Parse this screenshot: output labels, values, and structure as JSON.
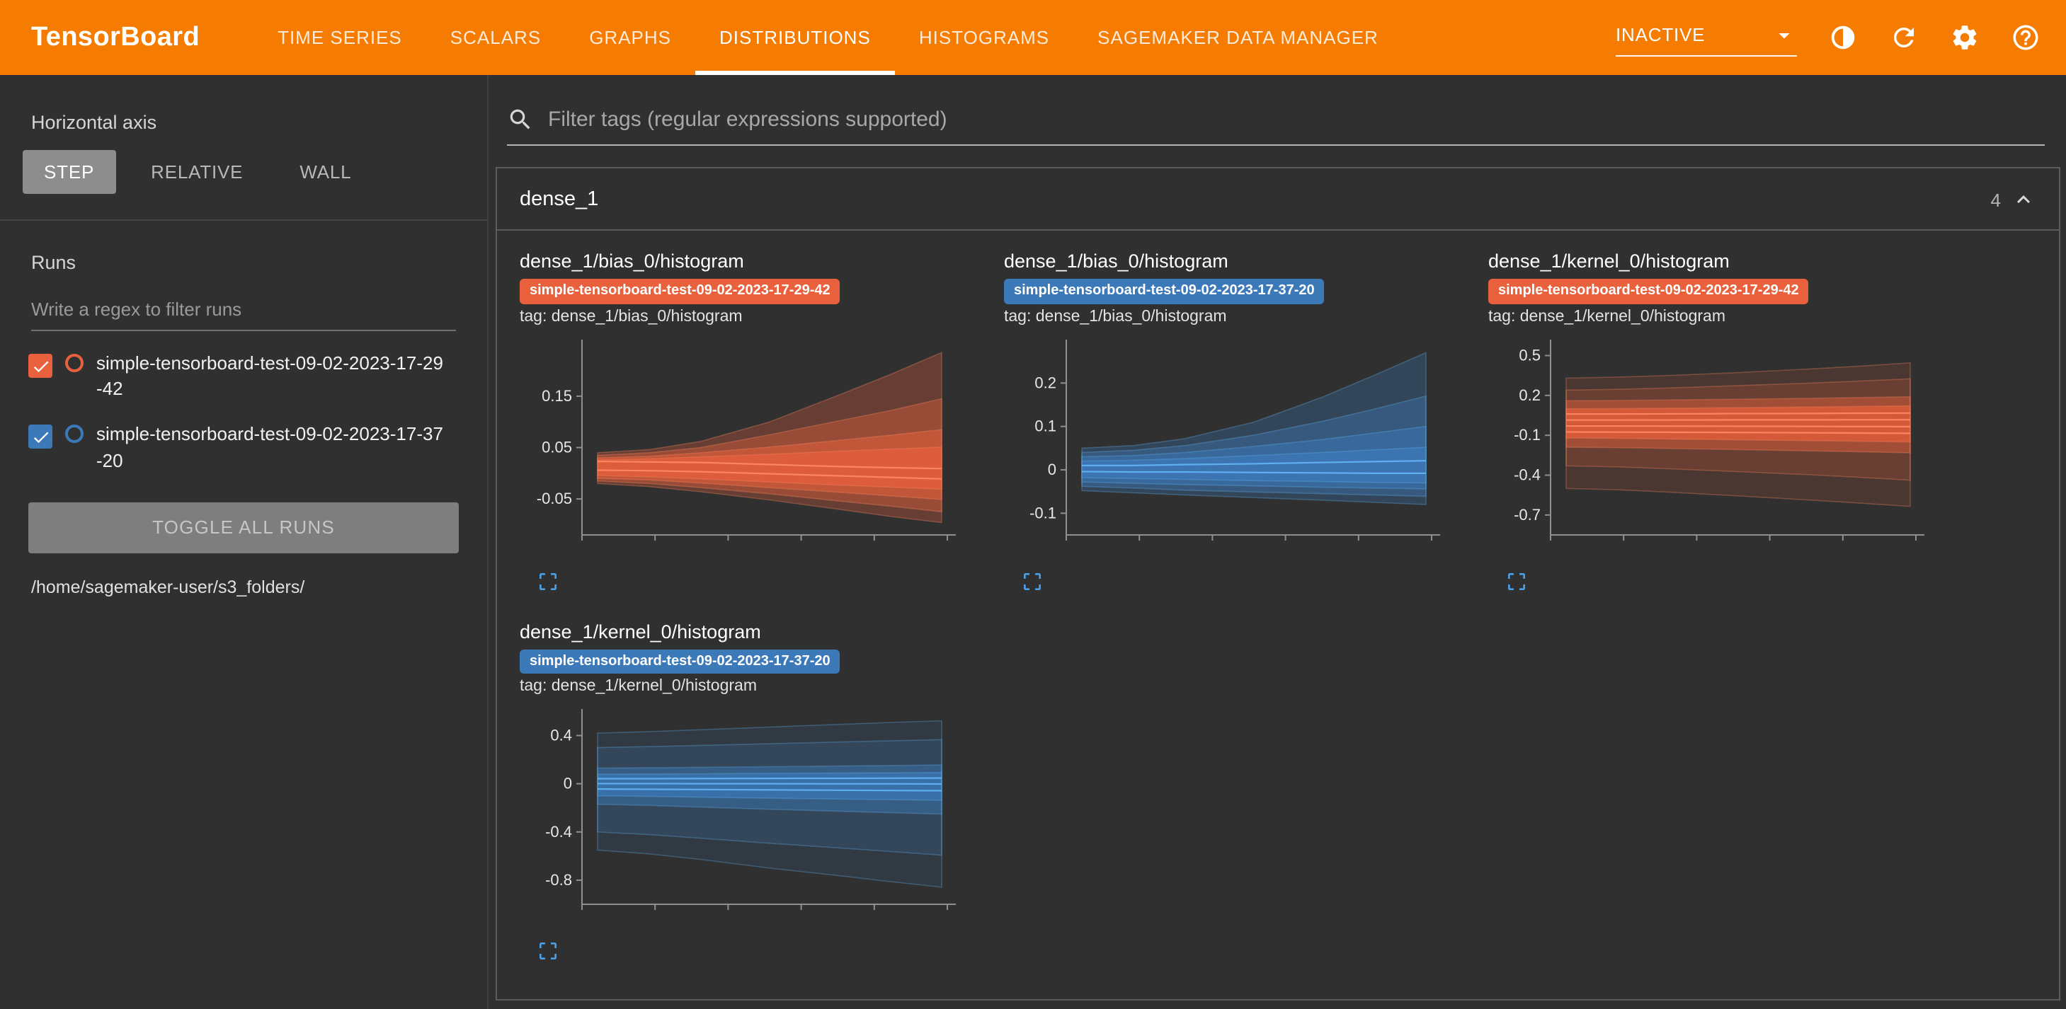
{
  "colors": {
    "header_bg": "#f57c00",
    "accent_blue": "#4a9fe8",
    "run_orange": "#e8603c",
    "run_blue": "#3c79b9"
  },
  "header": {
    "logo": "TensorBoard",
    "tabs": [
      {
        "label": "TIME SERIES",
        "active": false
      },
      {
        "label": "SCALARS",
        "active": false
      },
      {
        "label": "GRAPHS",
        "active": false
      },
      {
        "label": "DISTRIBUTIONS",
        "active": true
      },
      {
        "label": "HISTOGRAMS",
        "active": false
      },
      {
        "label": "SAGEMAKER DATA MANAGER",
        "active": false
      }
    ],
    "status_dropdown": "INACTIVE",
    "icons": [
      "theme-icon",
      "refresh-icon",
      "settings-icon",
      "help-icon"
    ]
  },
  "sidebar": {
    "horizontal_axis_label": "Horizontal axis",
    "axis_modes": [
      {
        "label": "STEP",
        "active": true
      },
      {
        "label": "RELATIVE",
        "active": false
      },
      {
        "label": "WALL",
        "active": false
      }
    ],
    "runs_label": "Runs",
    "runs_filter_placeholder": "Write a regex to filter runs",
    "runs": [
      {
        "name": "simple-tensorboard-test-09-02-2023-17-29-42",
        "color": "#e8603c",
        "checked": true
      },
      {
        "name": "simple-tensorboard-test-09-02-2023-17-37-20",
        "color": "#3c79b9",
        "checked": true
      }
    ],
    "toggle_all_label": "TOGGLE ALL RUNS",
    "log_path": "/home/sagemaker-user/s3_folders/"
  },
  "main": {
    "filter_placeholder": "Filter tags (regular expressions supported)",
    "card": {
      "title": "dense_1",
      "count": "4"
    }
  },
  "chart_data": [
    {
      "type": "area",
      "title": "dense_1/bias_0/histogram",
      "run": "simple-tensorboard-test-09-02-2023-17-29-42",
      "tag_line": "tag: dense_1/bias_0/histogram",
      "color": "#e8603c",
      "line_color": "#ff8a65",
      "ylim": [
        -0.12,
        0.26
      ],
      "yticks": [
        0.15,
        0.05,
        -0.05
      ],
      "x": [
        0,
        0.15,
        0.3,
        0.5,
        0.7,
        0.85,
        1
      ],
      "bands": [
        {
          "upper": [
            0.04,
            0.046,
            0.062,
            0.1,
            0.152,
            0.192,
            0.235
          ],
          "lower": [
            -0.02,
            -0.026,
            -0.036,
            -0.052,
            -0.07,
            -0.084,
            -0.096
          ],
          "opacity": 0.3
        },
        {
          "upper": [
            0.035,
            0.04,
            0.05,
            0.075,
            0.102,
            0.122,
            0.145
          ],
          "lower": [
            -0.015,
            -0.02,
            -0.028,
            -0.04,
            -0.054,
            -0.064,
            -0.075
          ],
          "opacity": 0.38
        },
        {
          "upper": [
            0.03,
            0.033,
            0.04,
            0.051,
            0.064,
            0.074,
            0.085
          ],
          "lower": [
            -0.01,
            -0.013,
            -0.019,
            -0.028,
            -0.037,
            -0.044,
            -0.051
          ],
          "opacity": 0.52
        },
        {
          "upper": [
            0.026,
            0.028,
            0.032,
            0.037,
            0.043,
            0.047,
            0.051
          ],
          "lower": [
            -0.004,
            -0.007,
            -0.011,
            -0.017,
            -0.023,
            -0.027,
            -0.031
          ],
          "opacity": 0.7
        }
      ],
      "lines": [
        [
          0.023,
          0.022,
          0.021,
          0.017,
          0.013,
          0.011,
          0.009
        ],
        [
          0.006,
          0.005,
          0.003,
          -0.001,
          -0.005,
          -0.008,
          -0.011
        ]
      ]
    },
    {
      "type": "area",
      "title": "dense_1/bias_0/histogram",
      "run": "simple-tensorboard-test-09-02-2023-17-37-20",
      "tag_line": "tag: dense_1/bias_0/histogram",
      "color": "#3c79b9",
      "line_color": "#64b5f6",
      "ylim": [
        -0.15,
        0.3
      ],
      "yticks": [
        0.2,
        0.1,
        0,
        -0.1
      ],
      "x": [
        0,
        0.15,
        0.3,
        0.5,
        0.7,
        0.85,
        1
      ],
      "bands": [
        {
          "upper": [
            0.05,
            0.056,
            0.072,
            0.11,
            0.168,
            0.218,
            0.27
          ],
          "lower": [
            -0.048,
            -0.053,
            -0.058,
            -0.064,
            -0.07,
            -0.075,
            -0.08
          ],
          "opacity": 0.3
        },
        {
          "upper": [
            0.04,
            0.045,
            0.056,
            0.08,
            0.112,
            0.14,
            0.17
          ],
          "lower": [
            -0.038,
            -0.042,
            -0.047,
            -0.051,
            -0.055,
            -0.058,
            -0.061
          ],
          "opacity": 0.38
        },
        {
          "upper": [
            0.03,
            0.033,
            0.04,
            0.054,
            0.07,
            0.085,
            0.1
          ],
          "lower": [
            -0.028,
            -0.031,
            -0.034,
            -0.037,
            -0.04,
            -0.042,
            -0.044
          ],
          "opacity": 0.52
        },
        {
          "upper": [
            0.02,
            0.022,
            0.026,
            0.033,
            0.04,
            0.046,
            0.052
          ],
          "lower": [
            -0.018,
            -0.02,
            -0.022,
            -0.025,
            -0.027,
            -0.029,
            -0.03
          ],
          "opacity": 0.7
        }
      ],
      "lines": [
        [
          0.01,
          0.01,
          0.012,
          0.014,
          0.017,
          0.019,
          0.021
        ],
        [
          -0.004,
          -0.005,
          -0.005,
          -0.006,
          -0.007,
          -0.008,
          -0.008
        ]
      ]
    },
    {
      "type": "area",
      "title": "dense_1/kernel_0/histogram",
      "run": "simple-tensorboard-test-09-02-2023-17-29-42",
      "tag_line": "tag: dense_1/kernel_0/histogram",
      "color": "#e8603c",
      "line_color": "#ff8a65",
      "ylim": [
        -0.85,
        0.62
      ],
      "yticks": [
        0.5,
        0.2,
        -0.1,
        -0.4,
        -0.7
      ],
      "x": [
        0,
        0.15,
        0.3,
        0.5,
        0.7,
        0.85,
        1
      ],
      "bands": [
        {
          "upper": [
            0.33,
            0.338,
            0.35,
            0.372,
            0.398,
            0.42,
            0.445
          ],
          "lower": [
            -0.5,
            -0.51,
            -0.528,
            -0.556,
            -0.586,
            -0.61,
            -0.635
          ],
          "opacity": 0.14
        },
        {
          "upper": [
            0.24,
            0.246,
            0.256,
            0.274,
            0.292,
            0.308,
            0.325
          ],
          "lower": [
            -0.33,
            -0.338,
            -0.352,
            -0.374,
            -0.396,
            -0.416,
            -0.438
          ],
          "opacity": 0.2
        },
        {
          "upper": [
            0.16,
            0.162,
            0.166,
            0.172,
            0.178,
            0.184,
            0.19
          ],
          "lower": [
            -0.19,
            -0.193,
            -0.199,
            -0.208,
            -0.217,
            -0.224,
            -0.232
          ],
          "opacity": 0.45
        },
        {
          "upper": [
            0.1,
            0.101,
            0.104,
            0.108,
            0.113,
            0.117,
            0.122
          ],
          "lower": [
            -0.12,
            -0.123,
            -0.128,
            -0.134,
            -0.14,
            -0.145,
            -0.15
          ],
          "opacity": 0.7
        }
      ],
      "lines": [
        [
          0.06,
          0.06,
          0.061,
          0.063,
          0.064,
          0.066,
          0.067
        ],
        [
          0.015,
          0.015,
          0.015,
          0.016,
          0.016,
          0.017,
          0.017
        ],
        [
          -0.03,
          -0.03,
          -0.031,
          -0.032,
          -0.033,
          -0.034,
          -0.035
        ],
        [
          -0.075,
          -0.076,
          -0.077,
          -0.079,
          -0.081,
          -0.083,
          -0.085
        ]
      ]
    },
    {
      "type": "area",
      "title": "dense_1/kernel_0/histogram",
      "run": "simple-tensorboard-test-09-02-2023-17-37-20",
      "tag_line": "tag: dense_1/kernel_0/histogram",
      "color": "#3c79b9",
      "line_color": "#64b5f6",
      "ylim": [
        -1.0,
        0.62
      ],
      "yticks": [
        0.4,
        0,
        -0.4,
        -0.8
      ],
      "x": [
        0,
        0.15,
        0.3,
        0.5,
        0.7,
        0.85,
        1
      ],
      "bands": [
        {
          "upper": [
            0.42,
            0.432,
            0.448,
            0.47,
            0.492,
            0.508,
            0.522
          ],
          "lower": [
            -0.55,
            -0.582,
            -0.628,
            -0.7,
            -0.762,
            -0.812,
            -0.858
          ],
          "opacity": 0.14
        },
        {
          "upper": [
            0.3,
            0.308,
            0.318,
            0.332,
            0.346,
            0.356,
            0.366
          ],
          "lower": [
            -0.4,
            -0.422,
            -0.452,
            -0.494,
            -0.532,
            -0.562,
            -0.592
          ],
          "opacity": 0.2
        },
        {
          "upper": [
            0.13,
            0.132,
            0.136,
            0.141,
            0.147,
            0.151,
            0.156
          ],
          "lower": [
            -0.17,
            -0.18,
            -0.194,
            -0.212,
            -0.228,
            -0.24,
            -0.252
          ],
          "opacity": 0.45
        },
        {
          "upper": [
            0.08,
            0.081,
            0.083,
            0.086,
            0.089,
            0.091,
            0.093
          ],
          "lower": [
            -0.1,
            -0.105,
            -0.112,
            -0.12,
            -0.127,
            -0.132,
            -0.137
          ],
          "opacity": 0.7
        }
      ],
      "lines": [
        [
          0.042,
          0.042,
          0.043,
          0.044,
          0.045,
          0.046,
          0.047
        ],
        [
          0.001,
          0.001,
          0.0,
          0.0,
          -0.001,
          -0.001,
          -0.002
        ],
        [
          -0.044,
          -0.046,
          -0.048,
          -0.051,
          -0.054,
          -0.056,
          -0.058
        ]
      ]
    }
  ]
}
